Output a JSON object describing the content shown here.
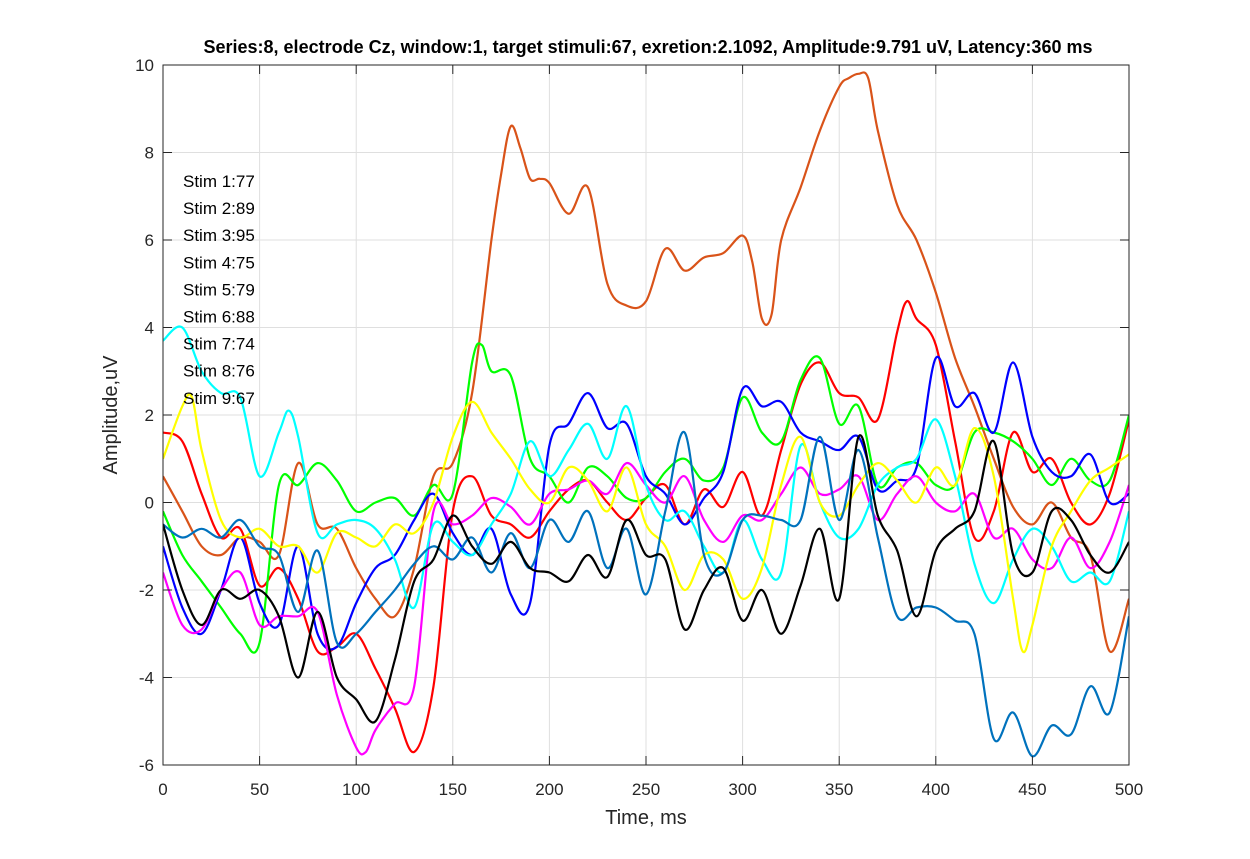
{
  "chart_data": {
    "type": "line",
    "title": "Series:8, electrode Cz, window:1, target stimuli:67, exretion:2.1092, Amplitude:9.791 uV, Latency:360 ms",
    "xlabel": "Time, ms",
    "ylabel": "Amplitude,uV",
    "xlim": [
      0,
      500
    ],
    "ylim": [
      -6,
      10
    ],
    "xticks": [
      0,
      50,
      100,
      150,
      200,
      250,
      300,
      350,
      400,
      450,
      500
    ],
    "yticks": [
      -6,
      -4,
      -2,
      0,
      2,
      4,
      6,
      8,
      10
    ],
    "grid": true,
    "annotations": [
      "Stim 1:77",
      "Stim 2:89",
      "Stim 3:95",
      "Stim 4:75",
      "Stim 5:79",
      "Stim 6:88",
      "Stim 7:74",
      "Stim 8:76",
      "Stim 9:67"
    ],
    "series": [
      {
        "color": "#d95319",
        "x": [
          0,
          10,
          20,
          30,
          40,
          50,
          60,
          70,
          80,
          90,
          100,
          110,
          120,
          130,
          140,
          150,
          160,
          170,
          175,
          180,
          185,
          190,
          195,
          200,
          210,
          220,
          230,
          240,
          250,
          260,
          270,
          280,
          290,
          300,
          305,
          310,
          315,
          320,
          330,
          340,
          350,
          355,
          360,
          365,
          370,
          380,
          390,
          400,
          410,
          420,
          430,
          440,
          450,
          460,
          470,
          480,
          490,
          500
        ],
        "y": [
          0.6,
          -0.2,
          -1.0,
          -1.2,
          -0.8,
          -0.9,
          -1.2,
          0.9,
          -0.5,
          -0.6,
          -1.5,
          -2.2,
          -2.6,
          -1.5,
          0.6,
          0.9,
          2.5,
          6.0,
          7.5,
          8.6,
          8.1,
          7.4,
          7.4,
          7.3,
          6.6,
          7.2,
          5.0,
          4.5,
          4.6,
          5.8,
          5.3,
          5.6,
          5.7,
          6.1,
          5.5,
          4.2,
          4.3,
          6.0,
          7.2,
          8.5,
          9.5,
          9.7,
          9.8,
          9.7,
          8.5,
          6.8,
          6.0,
          4.8,
          3.3,
          2.2,
          1.0,
          -0.1,
          -0.5,
          0.0,
          -0.8,
          -1.2,
          -3.4,
          -2.2
        ]
      },
      {
        "color": "#ff0000",
        "x": [
          0,
          10,
          20,
          30,
          40,
          50,
          60,
          70,
          80,
          90,
          100,
          110,
          120,
          130,
          140,
          150,
          160,
          170,
          180,
          190,
          200,
          210,
          220,
          230,
          240,
          250,
          260,
          270,
          280,
          290,
          300,
          310,
          320,
          330,
          340,
          350,
          360,
          370,
          380,
          385,
          390,
          400,
          410,
          420,
          430,
          440,
          450,
          460,
          470,
          480,
          490,
          500
        ],
        "y": [
          1.6,
          1.4,
          0.2,
          -0.8,
          -0.6,
          -1.9,
          -1.5,
          -2.2,
          -3.4,
          -3.3,
          -3.0,
          -3.8,
          -4.7,
          -5.7,
          -4.2,
          -0.2,
          0.6,
          -0.3,
          -0.5,
          -0.8,
          -0.2,
          0.3,
          0.5,
          0.0,
          -0.4,
          0.1,
          0.4,
          -0.5,
          0.3,
          -0.1,
          0.7,
          -0.3,
          1.2,
          2.7,
          3.2,
          2.5,
          2.4,
          1.9,
          3.9,
          4.6,
          4.2,
          3.6,
          1.4,
          -0.8,
          -0.2,
          1.6,
          0.7,
          1.0,
          0.0,
          -0.5,
          0.2,
          1.9
        ]
      },
      {
        "color": "#00ff00",
        "x": [
          0,
          10,
          20,
          30,
          40,
          50,
          60,
          70,
          80,
          90,
          100,
          110,
          120,
          130,
          140,
          150,
          160,
          165,
          170,
          180,
          190,
          200,
          210,
          220,
          230,
          240,
          250,
          260,
          270,
          280,
          290,
          300,
          310,
          320,
          330,
          340,
          350,
          360,
          370,
          380,
          390,
          400,
          410,
          420,
          430,
          440,
          450,
          460,
          470,
          480,
          490,
          500
        ],
        "y": [
          -0.2,
          -1.2,
          -1.8,
          -2.4,
          -3.0,
          -3.2,
          0.4,
          0.4,
          0.9,
          0.5,
          -0.2,
          0.0,
          0.1,
          -0.3,
          0.4,
          0.2,
          3.2,
          3.6,
          3.0,
          2.9,
          1.0,
          0.6,
          0.0,
          0.8,
          0.6,
          0.1,
          0.1,
          0.7,
          1.0,
          0.5,
          0.8,
          2.4,
          1.6,
          1.4,
          2.8,
          3.3,
          1.8,
          2.2,
          0.4,
          0.8,
          0.9,
          0.4,
          0.4,
          1.6,
          1.6,
          1.4,
          1.0,
          0.4,
          1.0,
          0.5,
          0.5,
          2.0
        ]
      },
      {
        "color": "#0000ff",
        "x": [
          0,
          10,
          20,
          30,
          40,
          50,
          60,
          70,
          80,
          90,
          100,
          110,
          120,
          130,
          140,
          150,
          160,
          170,
          180,
          190,
          200,
          210,
          220,
          230,
          240,
          250,
          260,
          270,
          280,
          290,
          300,
          310,
          320,
          330,
          340,
          350,
          360,
          370,
          380,
          390,
          400,
          410,
          420,
          430,
          440,
          450,
          460,
          470,
          480,
          490,
          500
        ],
        "y": [
          -1.0,
          -2.4,
          -3.0,
          -2.0,
          -0.8,
          -2.3,
          -2.8,
          -1.0,
          -3.0,
          -3.3,
          -2.3,
          -1.5,
          -1.2,
          -0.4,
          0.2,
          -0.7,
          -1.2,
          -0.6,
          -2.1,
          -2.3,
          1.3,
          1.8,
          2.5,
          1.7,
          1.8,
          0.6,
          0.2,
          -0.5,
          0.1,
          0.7,
          2.6,
          2.2,
          2.3,
          1.6,
          1.4,
          1.2,
          1.5,
          0.3,
          0.5,
          0.8,
          3.3,
          2.2,
          2.5,
          1.6,
          3.2,
          1.5,
          0.7,
          0.6,
          1.1,
          0.0,
          0.2
        ]
      },
      {
        "color": "#ff00ff",
        "x": [
          0,
          10,
          20,
          30,
          40,
          50,
          60,
          70,
          80,
          90,
          100,
          105,
          110,
          120,
          130,
          140,
          150,
          160,
          170,
          180,
          190,
          200,
          210,
          220,
          230,
          240,
          250,
          260,
          270,
          280,
          290,
          300,
          310,
          320,
          330,
          340,
          350,
          360,
          370,
          380,
          390,
          400,
          410,
          420,
          430,
          440,
          450,
          460,
          470,
          480,
          490,
          500
        ],
        "y": [
          -1.6,
          -2.8,
          -2.9,
          -2.0,
          -1.6,
          -2.8,
          -2.6,
          -2.6,
          -2.5,
          -4.4,
          -5.6,
          -5.7,
          -5.2,
          -4.6,
          -4.2,
          -0.2,
          -0.5,
          -0.3,
          0.1,
          -0.1,
          -0.5,
          0.2,
          0.3,
          0.5,
          0.2,
          0.9,
          0.4,
          0.0,
          0.6,
          -0.4,
          -0.9,
          -0.3,
          -0.4,
          0.2,
          0.8,
          0.2,
          0.3,
          0.6,
          -0.4,
          0.2,
          0.6,
          0.0,
          -0.2,
          0.2,
          -0.8,
          -0.6,
          -1.3,
          -1.5,
          -0.8,
          -1.5,
          -0.9,
          0.4
        ]
      },
      {
        "color": "#00ffff",
        "x": [
          0,
          10,
          20,
          30,
          40,
          50,
          60,
          65,
          70,
          80,
          90,
          100,
          110,
          120,
          130,
          140,
          150,
          160,
          170,
          180,
          190,
          200,
          210,
          220,
          230,
          240,
          250,
          260,
          270,
          280,
          290,
          300,
          310,
          320,
          330,
          340,
          350,
          360,
          370,
          380,
          390,
          400,
          410,
          420,
          430,
          440,
          450,
          460,
          470,
          480,
          490,
          500
        ],
        "y": [
          3.7,
          4.0,
          3.0,
          2.5,
          2.4,
          0.6,
          1.6,
          2.1,
          1.5,
          -0.7,
          -0.5,
          -0.4,
          -0.6,
          -1.3,
          -2.4,
          -0.5,
          -0.9,
          -1.2,
          -0.5,
          0.2,
          1.4,
          0.6,
          1.2,
          1.8,
          1.0,
          2.2,
          0.4,
          -0.4,
          -0.2,
          -1.0,
          -1.6,
          -0.4,
          -1.3,
          -1.6,
          1.3,
          0.0,
          -0.8,
          -0.6,
          0.4,
          0.8,
          1.0,
          1.9,
          0.6,
          -1.4,
          -2.3,
          -1.3,
          -0.6,
          -1.0,
          -1.8,
          -1.6,
          -1.8,
          -0.2
        ]
      },
      {
        "color": "#ffff00",
        "x": [
          0,
          10,
          15,
          20,
          30,
          40,
          50,
          60,
          70,
          80,
          90,
          100,
          110,
          120,
          130,
          140,
          150,
          160,
          170,
          180,
          190,
          200,
          210,
          220,
          230,
          240,
          250,
          260,
          270,
          280,
          290,
          300,
          310,
          320,
          330,
          340,
          350,
          360,
          370,
          380,
          390,
          400,
          410,
          420,
          430,
          440,
          445,
          450,
          460,
          470,
          480,
          490,
          500
        ],
        "y": [
          1.0,
          2.2,
          2.4,
          1.2,
          -0.4,
          -0.8,
          -0.6,
          -1.0,
          -1.0,
          -1.6,
          -0.7,
          -0.8,
          -1.0,
          -0.5,
          -0.7,
          0.0,
          1.5,
          2.3,
          1.6,
          1.0,
          0.3,
          0.0,
          0.8,
          0.5,
          -0.2,
          0.8,
          -0.5,
          -1.0,
          -2.0,
          -1.2,
          -1.3,
          -2.2,
          -1.5,
          0.4,
          1.5,
          0.0,
          -0.3,
          0.4,
          0.9,
          0.5,
          0.0,
          0.8,
          0.4,
          1.7,
          0.6,
          -2.2,
          -3.4,
          -2.8,
          -1.0,
          -0.2,
          0.5,
          0.8,
          1.1
        ]
      },
      {
        "color": "#0072bd",
        "x": [
          0,
          10,
          20,
          30,
          40,
          50,
          60,
          70,
          80,
          90,
          100,
          110,
          120,
          130,
          140,
          150,
          160,
          170,
          180,
          190,
          200,
          210,
          220,
          230,
          240,
          250,
          260,
          270,
          280,
          290,
          300,
          310,
          320,
          330,
          340,
          350,
          360,
          370,
          380,
          390,
          400,
          410,
          420,
          430,
          440,
          450,
          460,
          470,
          480,
          490,
          500
        ],
        "y": [
          -0.5,
          -0.8,
          -0.6,
          -0.8,
          -0.4,
          -1.0,
          -1.2,
          -2.5,
          -1.1,
          -3.2,
          -3.0,
          -2.5,
          -2.0,
          -1.4,
          -1.0,
          -1.3,
          -0.8,
          -1.6,
          -0.7,
          -1.5,
          -0.4,
          -0.9,
          -0.2,
          -1.5,
          -0.6,
          -2.1,
          -0.2,
          1.6,
          -1.2,
          -1.6,
          -0.4,
          -0.3,
          -0.4,
          -0.4,
          1.5,
          -0.4,
          1.2,
          -0.8,
          -2.6,
          -2.4,
          -2.4,
          -2.7,
          -3.0,
          -5.4,
          -4.8,
          -5.8,
          -5.1,
          -5.3,
          -4.2,
          -4.8,
          -2.6
        ]
      },
      {
        "color": "#000000",
        "x": [
          0,
          10,
          20,
          30,
          40,
          50,
          60,
          70,
          80,
          90,
          100,
          110,
          120,
          130,
          140,
          150,
          160,
          170,
          180,
          190,
          200,
          210,
          220,
          230,
          240,
          250,
          260,
          270,
          280,
          290,
          300,
          310,
          320,
          330,
          340,
          350,
          360,
          370,
          380,
          390,
          400,
          410,
          420,
          430,
          440,
          450,
          460,
          470,
          480,
          490,
          500
        ],
        "y": [
          -0.5,
          -2.0,
          -2.8,
          -2.0,
          -2.2,
          -2.0,
          -2.6,
          -4.0,
          -2.5,
          -4.0,
          -4.5,
          -5.0,
          -3.6,
          -1.8,
          -1.3,
          -0.3,
          -1.0,
          -1.4,
          -0.9,
          -1.5,
          -1.6,
          -1.8,
          -1.2,
          -1.7,
          -0.4,
          -1.2,
          -1.3,
          -2.9,
          -2.0,
          -1.5,
          -2.7,
          -2.0,
          -3.0,
          -1.9,
          -0.6,
          -2.2,
          1.5,
          -0.3,
          -1.1,
          -2.6,
          -1.1,
          -0.6,
          -0.2,
          1.4,
          -1.2,
          -1.6,
          -0.2,
          -0.4,
          -1.2,
          -1.6,
          -0.9
        ]
      }
    ]
  }
}
